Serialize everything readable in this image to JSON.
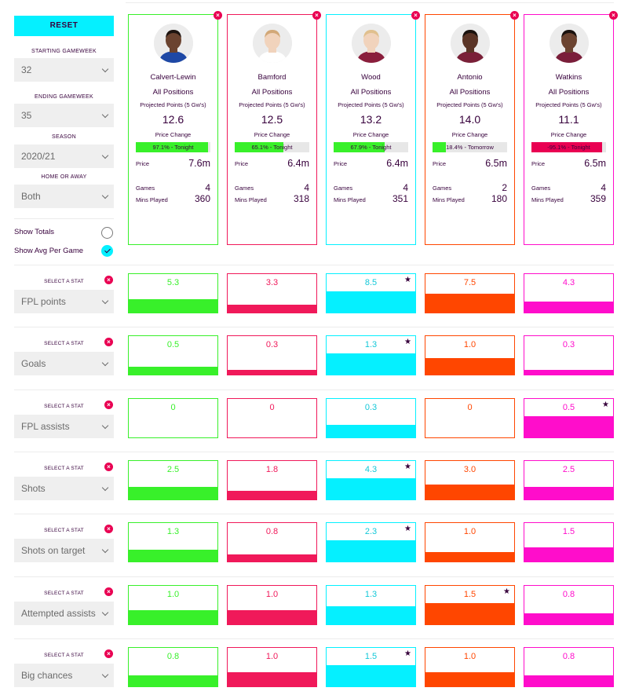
{
  "controls": {
    "reset_label": "RESET",
    "starting_gameweek": {
      "label": "STARTING GAMEWEEK",
      "value": "32"
    },
    "ending_gameweek": {
      "label": "ENDING GAMEWEEK",
      "value": "35"
    },
    "season": {
      "label": "SEASON",
      "value": "2020/21"
    },
    "home_away": {
      "label": "HOME OR AWAY",
      "value": "Both"
    },
    "show_totals": {
      "label": "Show Totals",
      "checked": false
    },
    "show_avg": {
      "label": "Show Avg Per Game",
      "checked": true
    }
  },
  "card_labels": {
    "projected": "Projected Points (5 Gw's)",
    "price_change": "Price Change",
    "price": "Price",
    "games": "Games",
    "mins": "Mins Played"
  },
  "players": [
    {
      "name": "Calvert-Lewin",
      "position": "All Positions",
      "projected": "12.6",
      "price_change_text": "97.1% - Tonight",
      "price_change_pct": 0.971,
      "price": "7.6m",
      "games": "4",
      "mins": "360",
      "color": "#38f02a",
      "skin": "#6b4330",
      "hair": "#1e1410",
      "shirt": "#1e48a5"
    },
    {
      "name": "Bamford",
      "position": "All Positions",
      "projected": "12.5",
      "price_change_text": "65.1% - Tonight",
      "price_change_pct": 0.651,
      "price": "6.4m",
      "games": "4",
      "mins": "318",
      "color": "#f0195a",
      "skin": "#f1d3bc",
      "hair": "#d2a878",
      "shirt": "#ffffff"
    },
    {
      "name": "Wood",
      "position": "All Positions",
      "projected": "13.2",
      "price_change_text": "67.9% - Tonight",
      "price_change_pct": 0.679,
      "price": "6.4m",
      "games": "4",
      "mins": "351",
      "color": "#05f0ff",
      "skin": "#f1d3bc",
      "hair": "#e0c08e",
      "shirt": "#8a1e3c"
    },
    {
      "name": "Antonio",
      "position": "All Positions",
      "projected": "14.0",
      "price_change_text": "18.4% - Tomorrow",
      "price_change_pct": 0.184,
      "price": "6.5m",
      "games": "2",
      "mins": "180",
      "color": "#ff4600",
      "skin": "#5a3426",
      "hair": "#1a120e",
      "shirt": "#7a2038"
    },
    {
      "name": "Watkins",
      "position": "All Positions",
      "projected": "11.1",
      "price_change_text": "-95.1% - Tonight",
      "price_change_pct": -0.951,
      "price": "6.5m",
      "games": "4",
      "mins": "359",
      "color": "#ff0dcb",
      "skin": "#6b4330",
      "hair": "#1a120e",
      "shirt": "#7a1e3a"
    }
  ],
  "price_change_colors": {
    "up": "#38f02a",
    "down": "#e90052"
  },
  "stats": [
    {
      "select_label": "SELECT A STAT",
      "name": "FPL points",
      "values": [
        "5.3",
        "3.3",
        "8.5",
        "7.5",
        "4.3"
      ],
      "nums": [
        5.3,
        3.3,
        8.5,
        7.5,
        4.3
      ],
      "best": 2
    },
    {
      "select_label": "SELECT A STAT",
      "name": "Goals",
      "values": [
        "0.5",
        "0.3",
        "1.3",
        "1.0",
        "0.3"
      ],
      "nums": [
        0.5,
        0.3,
        1.3,
        1.0,
        0.3
      ],
      "best": 2
    },
    {
      "select_label": "SELECT A STAT",
      "name": "FPL assists",
      "values": [
        "0",
        "0",
        "0.3",
        "0",
        "0.5"
      ],
      "nums": [
        0,
        0,
        0.3,
        0,
        0.5
      ],
      "best": 4
    },
    {
      "select_label": "SELECT A STAT",
      "name": "Shots",
      "values": [
        "2.5",
        "1.8",
        "4.3",
        "3.0",
        "2.5"
      ],
      "nums": [
        2.5,
        1.8,
        4.3,
        3.0,
        2.5
      ],
      "best": 2
    },
    {
      "select_label": "SELECT A STAT",
      "name": "Shots on target",
      "values": [
        "1.3",
        "0.8",
        "2.3",
        "1.0",
        "1.5"
      ],
      "nums": [
        1.3,
        0.8,
        2.3,
        1.0,
        1.5
      ],
      "best": 2
    },
    {
      "select_label": "SELECT A STAT",
      "name": "Attempted assists",
      "values": [
        "1.0",
        "1.0",
        "1.3",
        "1.5",
        "0.8"
      ],
      "nums": [
        1.0,
        1.0,
        1.3,
        1.5,
        0.8
      ],
      "best": 3
    },
    {
      "select_label": "SELECT A STAT",
      "name": "Big chances",
      "values": [
        "0.8",
        "1.0",
        "1.5",
        "1.0",
        "0.8"
      ],
      "nums": [
        0.8,
        1.0,
        1.5,
        1.0,
        0.8
      ],
      "best": 2
    }
  ],
  "icons": {
    "remove": "close-icon",
    "dropdown": "chevron-down-icon",
    "best": "star-icon",
    "check": "checkmark-icon"
  }
}
